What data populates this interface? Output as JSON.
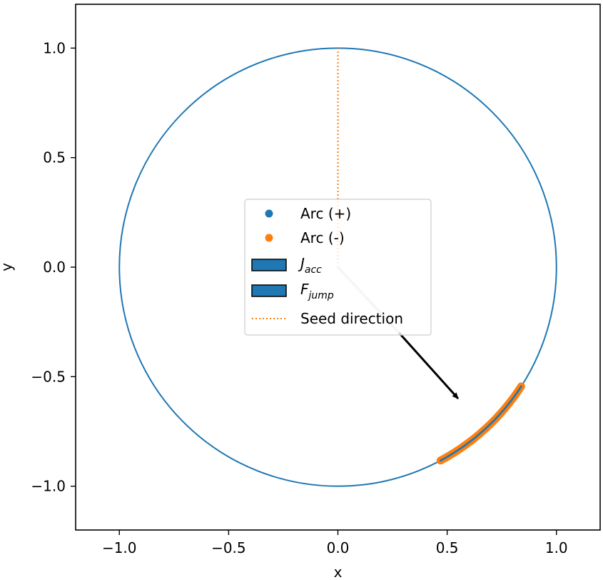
{
  "chart_data": {
    "type": "line",
    "xlabel": "x",
    "ylabel": "y",
    "xlim": [
      -1.2,
      1.2
    ],
    "ylim": [
      -1.2,
      1.2
    ],
    "grid": false,
    "aspect": "equal",
    "x_ticks": [
      {
        "value": -1.0,
        "label": "−1.0"
      },
      {
        "value": -0.5,
        "label": "−0.5"
      },
      {
        "value": 0.0,
        "label": "0.0"
      },
      {
        "value": 0.5,
        "label": "0.5"
      },
      {
        "value": 1.0,
        "label": "1.0"
      }
    ],
    "y_ticks": [
      {
        "value": 1.0,
        "label": "1.0"
      },
      {
        "value": 0.5,
        "label": "0.5"
      },
      {
        "value": 0.0,
        "label": "0.0"
      },
      {
        "value": -0.5,
        "label": "−0.5"
      },
      {
        "value": -1.0,
        "label": "−1.0"
      }
    ],
    "circle": {
      "center": [
        0,
        0
      ],
      "radius": 1.0,
      "color": "#1f77b4"
    },
    "series": [
      {
        "name": "Arc (+)",
        "kind": "scatter-arc",
        "color": "#1f77b4",
        "angle_start_deg": -62,
        "angle_end_deg": -33,
        "radius": 1.0
      },
      {
        "name": "Arc (-)",
        "kind": "scatter-arc",
        "color": "#ff7f0e",
        "angle_start_deg": -62,
        "angle_end_deg": -33,
        "radius": 1.0
      },
      {
        "name": "J_acc",
        "legend_main": "J",
        "legend_sub": "acc",
        "kind": "arrow",
        "color": "#d3d3d3",
        "from": [
          0,
          0
        ],
        "to": [
          0.28,
          -0.3
        ]
      },
      {
        "name": "F_jump",
        "legend_main": "F",
        "legend_sub": "jump",
        "kind": "arrow",
        "color": "#000000",
        "from": [
          0.28,
          -0.3
        ],
        "to": [
          0.55,
          -0.6
        ]
      },
      {
        "name": "Seed direction",
        "kind": "dotted-line",
        "color": "#ff7f0e",
        "from": [
          0,
          0
        ],
        "to": [
          0,
          1.0
        ]
      }
    ],
    "legend": {
      "placement": "center",
      "entries": [
        {
          "label": "Arc (+)",
          "marker": "dot",
          "color": "#1f77b4"
        },
        {
          "label": "Arc (-)",
          "marker": "dot",
          "color": "#ff7f0e"
        },
        {
          "main": "J",
          "sub": "acc",
          "marker": "box",
          "color": "#1f77b4"
        },
        {
          "main": "F",
          "sub": "jump",
          "marker": "box",
          "color": "#1f77b4"
        },
        {
          "label": "Seed direction",
          "marker": "dotted",
          "color": "#ff7f0e"
        }
      ]
    }
  }
}
